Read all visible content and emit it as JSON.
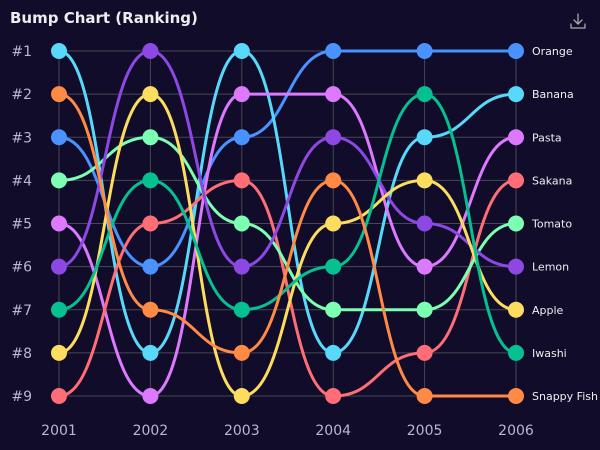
{
  "toolbar": {
    "download_icon": "download-icon"
  },
  "chart_data": {
    "type": "line",
    "subtype": "bump",
    "title": "Bump Chart (Ranking)",
    "x": [
      "2001",
      "2002",
      "2003",
      "2004",
      "2005",
      "2006"
    ],
    "y_ticks": [
      "#1",
      "#2",
      "#3",
      "#4",
      "#5",
      "#6",
      "#7",
      "#8",
      "#9"
    ],
    "ylim": [
      1,
      9
    ],
    "y_inverted": true,
    "grid": true,
    "legend": "right-end labels",
    "series": [
      {
        "name": "Orange",
        "color": "#4992ff",
        "values": [
          3,
          6,
          3,
          1,
          1,
          1
        ]
      },
      {
        "name": "Banana",
        "color": "#58d9f9",
        "values": [
          1,
          8,
          1,
          8,
          3,
          2
        ]
      },
      {
        "name": "Pasta",
        "color": "#dd79ff",
        "values": [
          5,
          9,
          2,
          2,
          6,
          3
        ]
      },
      {
        "name": "Sakana",
        "color": "#ff6e76",
        "values": [
          9,
          5,
          4,
          9,
          8,
          4
        ]
      },
      {
        "name": "Tomato",
        "color": "#7cffb2",
        "values": [
          4,
          3,
          5,
          7,
          7,
          5
        ]
      },
      {
        "name": "Lemon",
        "color": "#8d48e3",
        "values": [
          6,
          1,
          6,
          3,
          5,
          6
        ]
      },
      {
        "name": "Apple",
        "color": "#fddd60",
        "values": [
          8,
          2,
          9,
          5,
          4,
          7
        ]
      },
      {
        "name": "Iwashi",
        "color": "#05c091",
        "values": [
          7,
          4,
          7,
          6,
          2,
          8
        ]
      },
      {
        "name": "Snappy Fish",
        "color": "#ff8a45",
        "values": [
          2,
          7,
          8,
          4,
          9,
          9
        ]
      }
    ]
  }
}
